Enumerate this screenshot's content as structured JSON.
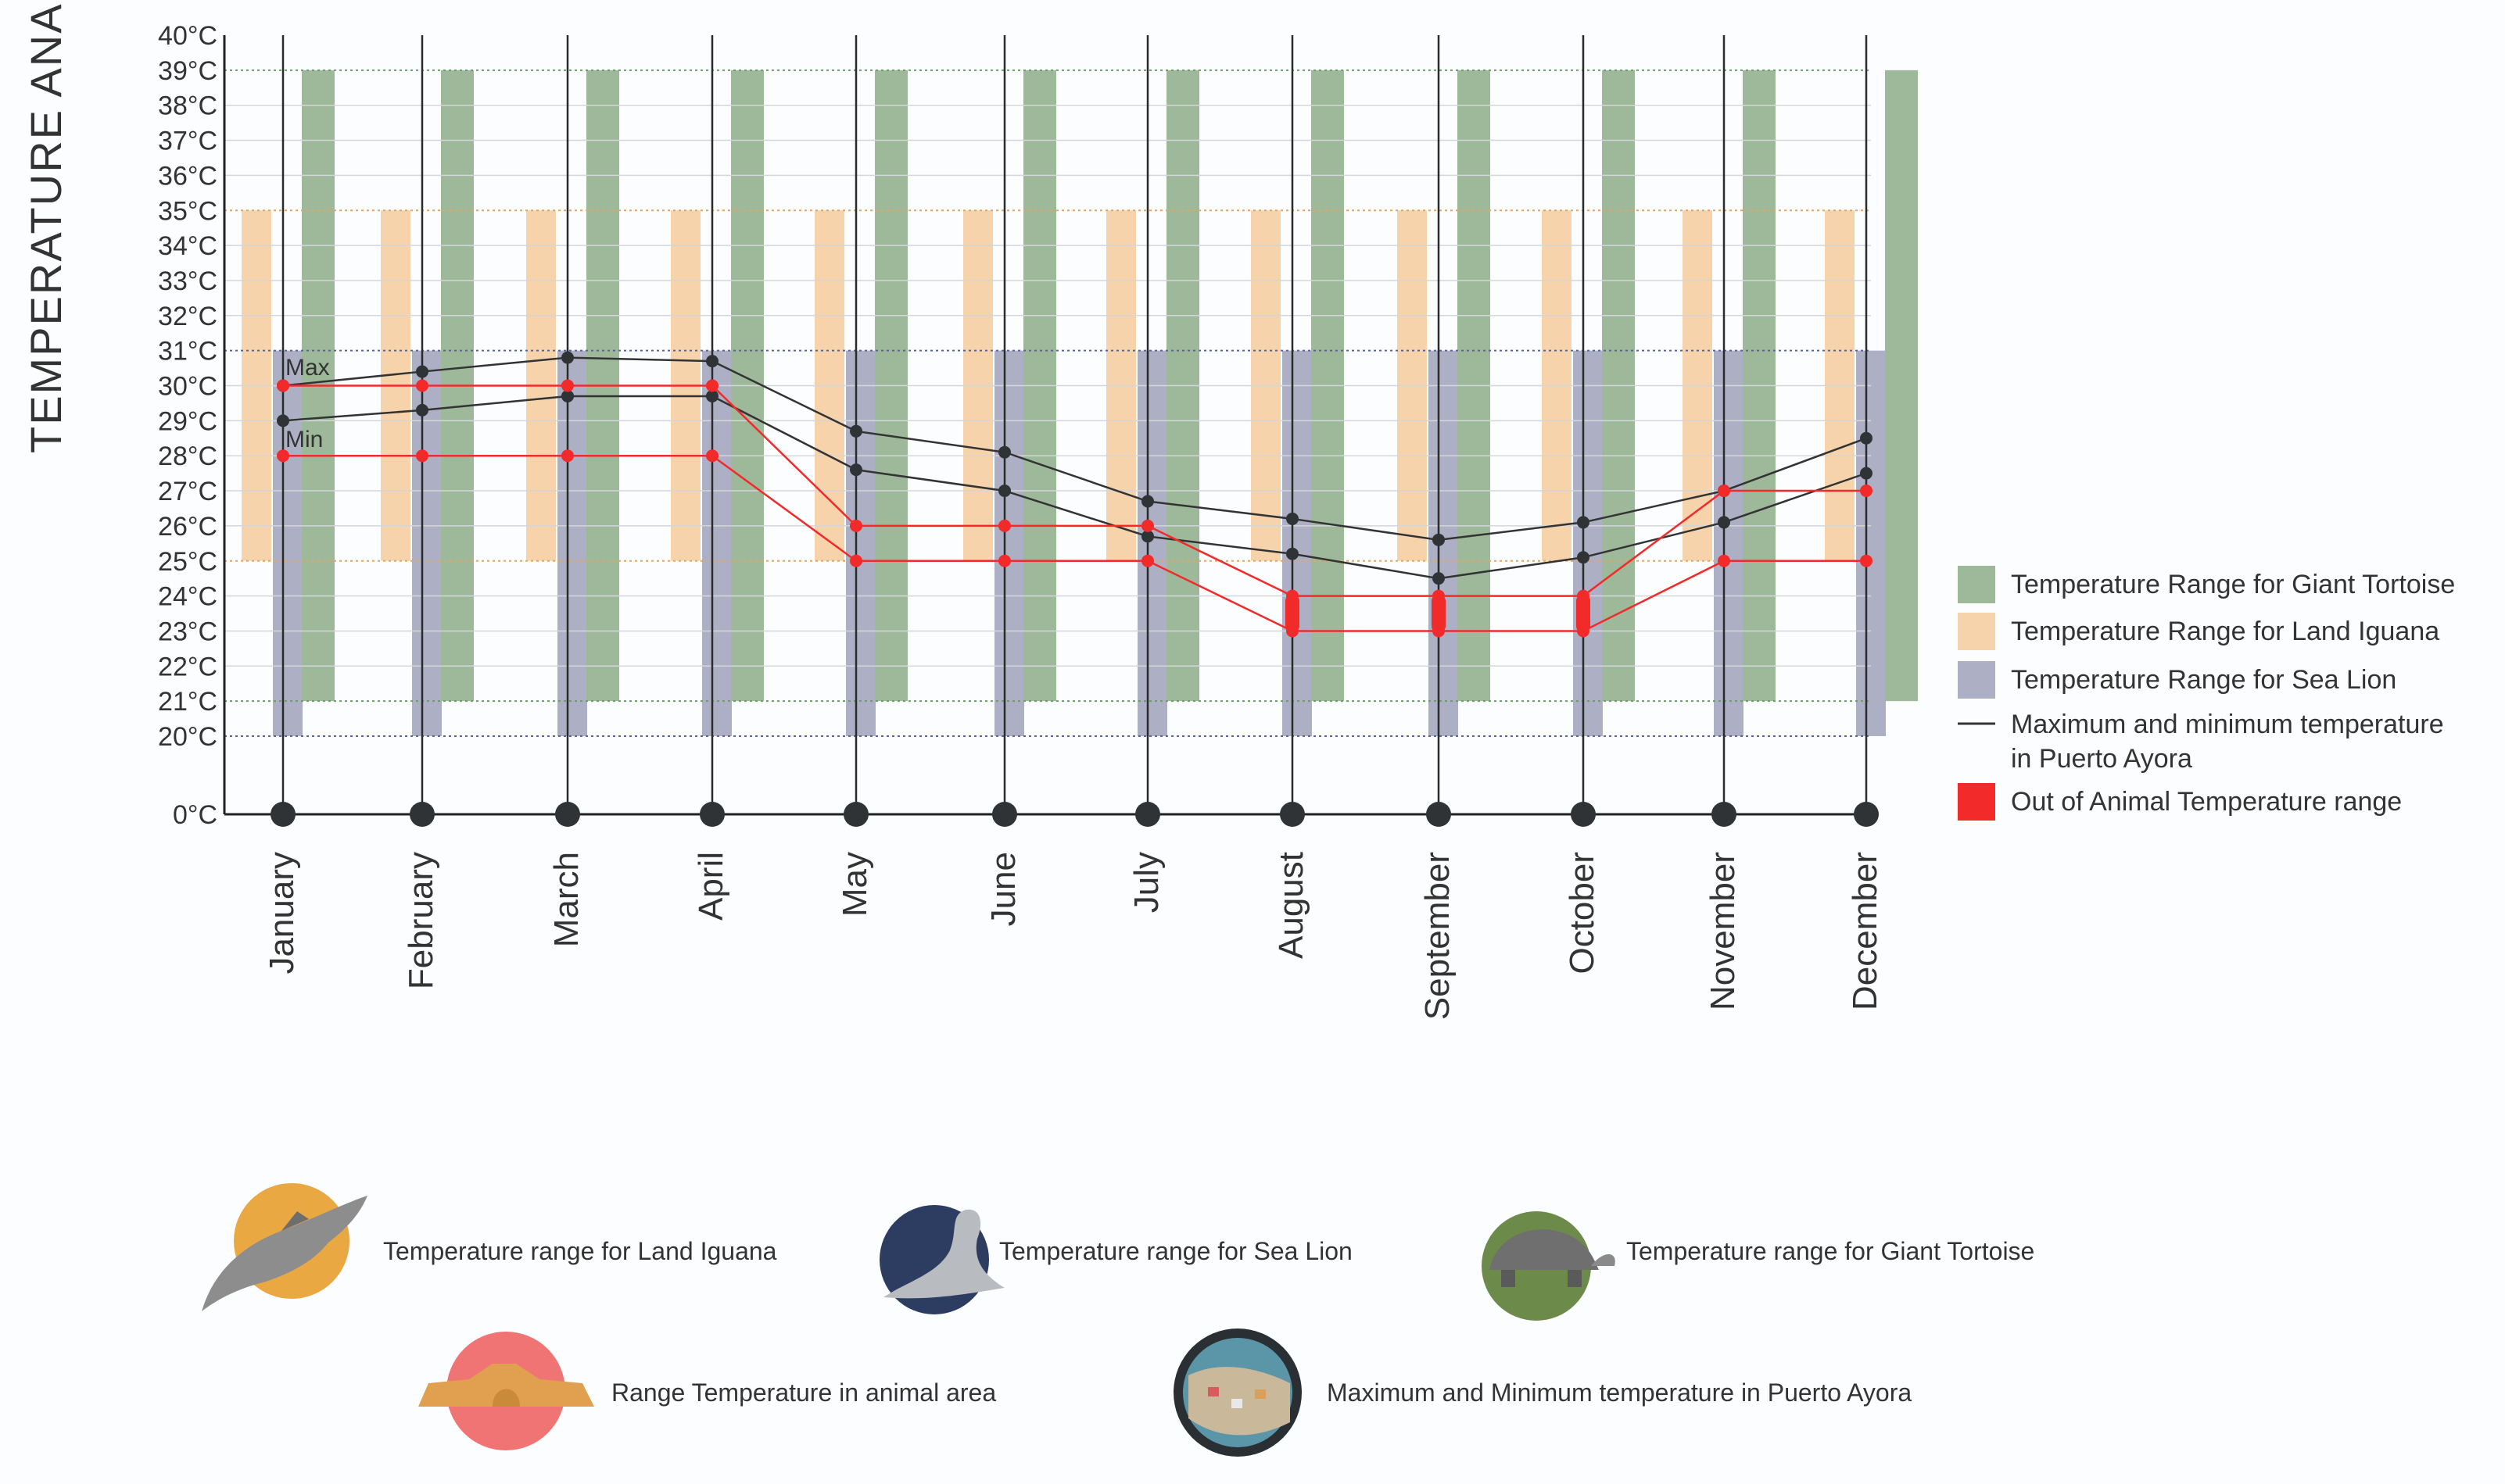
{
  "chart_data": {
    "type": "range-bar-line",
    "title": "TEMPERATURE ANALYSIS",
    "xlabel": "",
    "ylabel": "",
    "categories": [
      "January",
      "February",
      "March",
      "April",
      "May",
      "June",
      "July",
      "August",
      "September",
      "October",
      "November",
      "December"
    ],
    "y_tick_labels": [
      "0°C",
      "20°C",
      "21°C",
      "22°C",
      "23°C",
      "24°C",
      "25°C",
      "26°C",
      "27°C",
      "28°C",
      "29°C",
      "30°C",
      "31°C",
      "32°C",
      "33°C",
      "34°C",
      "35°C",
      "36°C",
      "37°C",
      "38°C",
      "39°C",
      "40°C"
    ],
    "y_ticks": [
      0,
      20,
      21,
      22,
      23,
      24,
      25,
      26,
      27,
      28,
      29,
      30,
      31,
      32,
      33,
      34,
      35,
      36,
      37,
      38,
      39,
      40
    ],
    "ranges": {
      "sea_lion": [
        20,
        31
      ],
      "land_iguana": [
        25,
        35
      ],
      "giant_tortoise": [
        21,
        39
      ]
    },
    "series": [
      {
        "name": "Max temperature Puerto Ayora",
        "values": [
          30.0,
          30.4,
          30.8,
          30.7,
          28.7,
          28.1,
          26.7,
          26.2,
          25.6,
          26.1,
          27.0,
          28.5
        ]
      },
      {
        "name": "Min temperature Puerto Ayora",
        "values": [
          29.0,
          29.3,
          29.7,
          29.7,
          27.6,
          27.0,
          25.7,
          25.2,
          24.5,
          25.1,
          26.1,
          27.5
        ]
      },
      {
        "name": "Range max in animal area",
        "values": [
          30,
          30,
          30,
          30,
          26,
          26,
          26,
          24,
          24,
          24,
          27,
          27
        ]
      },
      {
        "name": "Range min in animal area",
        "values": [
          28,
          28,
          28,
          28,
          25,
          25,
          25,
          23,
          23,
          23,
          25,
          25
        ]
      }
    ],
    "out_of_range": [
      {
        "month": "August",
        "from": 23,
        "to": 24
      },
      {
        "month": "September",
        "from": 23,
        "to": 24
      },
      {
        "month": "October",
        "from": 23,
        "to": 24
      }
    ],
    "annotations": {
      "max_label": "Max",
      "min_label": "Min"
    },
    "legend": [
      {
        "label": "Temperature Range for Giant Tortoise",
        "color": "#9db99a"
      },
      {
        "label": "Temperature Range for Land Iguana",
        "color": "#f6d3ab"
      },
      {
        "label": "Temperature Range for Sea Lion",
        "color": "#adb0c4"
      },
      {
        "label_line1": "Maximum and minimum temperature",
        "label_line2": "in Puerto Ayora",
        "color": "#333333"
      },
      {
        "label": "Out of Animal Temperature range",
        "color": "#f22a2a"
      }
    ],
    "colors": {
      "tortoise": "#9db99a",
      "iguana": "#f6d3ab",
      "sealion": "#adb0c4",
      "line": "#333333",
      "red": "#f22a2a"
    }
  },
  "icon_legend": [
    {
      "icon": "land-iguana-icon",
      "label": "Temperature range for Land Iguana",
      "circle": "#eaa843"
    },
    {
      "icon": "sea-lion-icon",
      "label": "Temperature range for Sea Lion",
      "circle": "#2c3d61"
    },
    {
      "icon": "giant-tortoise-icon",
      "label": "Temperature range for Giant Tortoise",
      "circle": "#6c8a4a"
    },
    {
      "icon": "animal-area-icon",
      "label": "Range Temperature in animal area",
      "circle": "#f07474"
    },
    {
      "icon": "puerto-ayora-icon",
      "label": "Maximum and Minimum temperature in Puerto Ayora",
      "circle": "#2a2f33"
    }
  ]
}
